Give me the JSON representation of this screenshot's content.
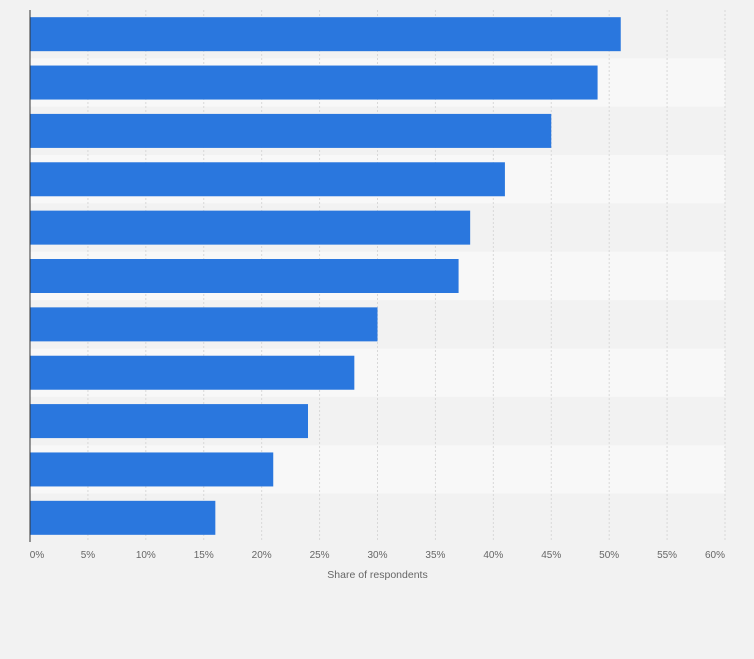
{
  "chart_data": {
    "type": "bar",
    "orientation": "horizontal",
    "xlabel": "Share of respondents",
    "ylabel": "",
    "xlim": [
      0,
      60
    ],
    "x_ticks": [
      0,
      5,
      10,
      15,
      20,
      25,
      30,
      35,
      40,
      45,
      50,
      55,
      60
    ],
    "x_tick_labels": [
      "0%",
      "5%",
      "10%",
      "15%",
      "20%",
      "25%",
      "30%",
      "35%",
      "40%",
      "45%",
      "50%",
      "55%",
      "60%"
    ],
    "values": [
      51,
      49,
      45,
      41,
      38,
      37,
      30,
      28,
      24,
      21,
      16
    ],
    "grid": true,
    "legend": "none",
    "colors": {
      "bar": "#2a77de",
      "band_dark": "#f2f2f2",
      "band_light": "#f8f8f8",
      "grid": "#d8d8d8",
      "axis": "#333333",
      "text": "#666666"
    }
  }
}
